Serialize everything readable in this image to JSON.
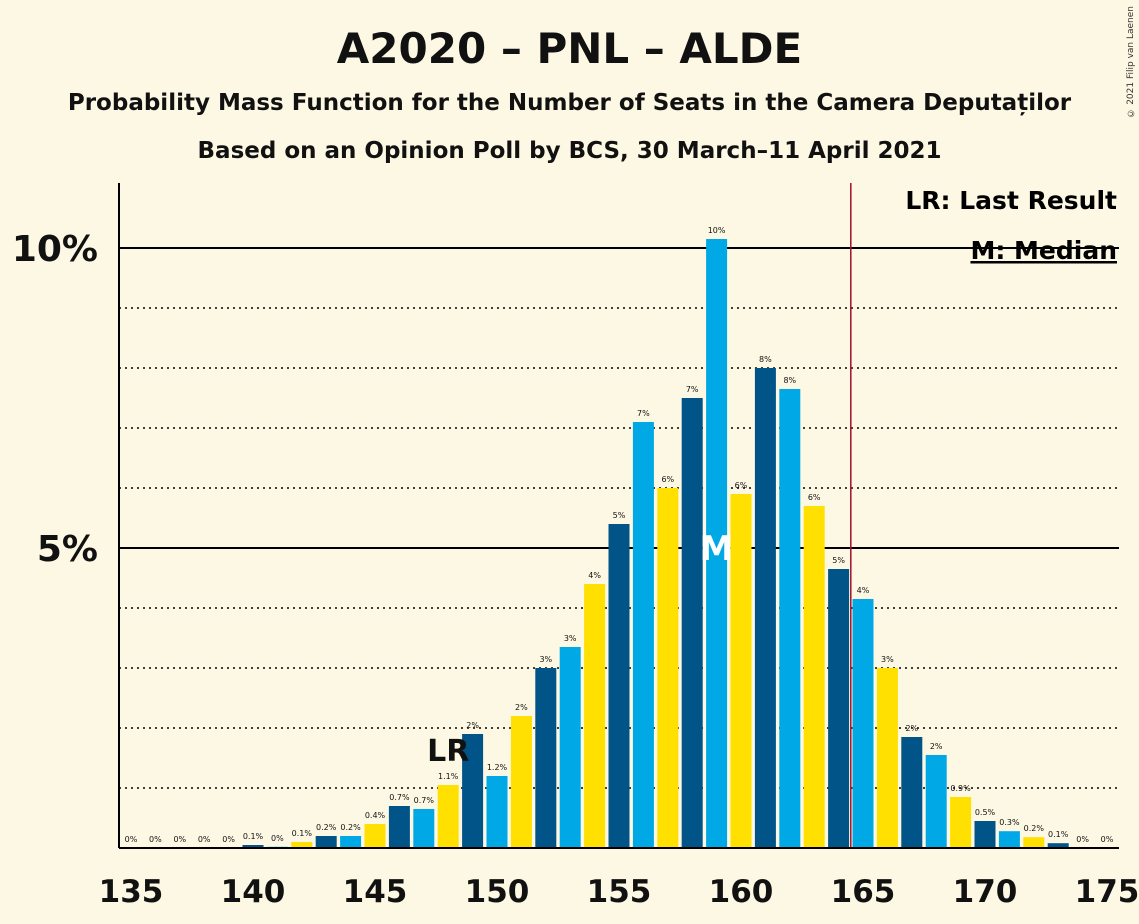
{
  "header": {
    "title": "A2020 – PNL – ALDE",
    "subtitle": "Probability Mass Function for the Number of Seats in the Camera Deputaților",
    "subtitle2": "Based on an Opinion Poll by BCS, 30 March–11 April 2021",
    "copyright": "© 2021 Filip van Laenen"
  },
  "legend": {
    "lr": "LR: Last Result",
    "median": "M: Median"
  },
  "markers": {
    "lr_label": "LR",
    "lr_seat": 148,
    "median_label": "M",
    "median_seat": 159,
    "majority_line_seat": 164.5
  },
  "colors": {
    "dark_blue": "#005487",
    "light_blue": "#00a9e6",
    "yellow": "#ffe000",
    "majority_line": "#a0102a",
    "background": "#fdf8e3"
  },
  "chart_data": {
    "type": "bar",
    "x": [
      135,
      136,
      137,
      138,
      139,
      140,
      141,
      142,
      143,
      144,
      145,
      146,
      147,
      148,
      149,
      150,
      151,
      152,
      153,
      154,
      155,
      156,
      157,
      158,
      159,
      160,
      161,
      162,
      163,
      164,
      165,
      166,
      167,
      168,
      169,
      170,
      171,
      172,
      173,
      174,
      175
    ],
    "values": [
      0,
      0,
      0,
      0,
      0,
      0.05,
      0.02,
      0.1,
      0.2,
      0.2,
      0.4,
      0.7,
      0.65,
      1.05,
      1.9,
      1.2,
      2.2,
      3.0,
      3.35,
      4.4,
      5.4,
      7.1,
      6.0,
      7.5,
      10.15,
      5.9,
      8.0,
      7.65,
      5.7,
      4.65,
      4.15,
      3.0,
      1.85,
      1.55,
      0.85,
      0.45,
      0.28,
      0.18,
      0.08,
      0,
      0
    ],
    "labels": [
      "0%",
      "0%",
      "0%",
      "0%",
      "0%",
      "0.1%",
      "0%",
      "0.1%",
      "0.2%",
      "0.2%",
      "0.4%",
      "0.7%",
      "0.7%",
      "1.1%",
      "2%",
      "1.2%",
      "2%",
      "3%",
      "3%",
      "4%",
      "5%",
      "7%",
      "6%",
      "7%",
      "10%",
      "6%",
      "8%",
      "8%",
      "6%",
      "5%",
      "4%",
      "3%",
      "2%",
      "2%",
      "0.9%",
      "0.5%",
      "0.3%",
      "0.2%",
      "0.1%",
      "0%",
      "0%"
    ],
    "ylim": [
      0,
      11
    ],
    "xlim": [
      135,
      175
    ],
    "y_ticks": [
      "5%",
      "10%"
    ],
    "x_ticks": [
      "135",
      "140",
      "145",
      "150",
      "155",
      "160",
      "165",
      "170",
      "175"
    ],
    "grid": "dotted every 1%"
  }
}
